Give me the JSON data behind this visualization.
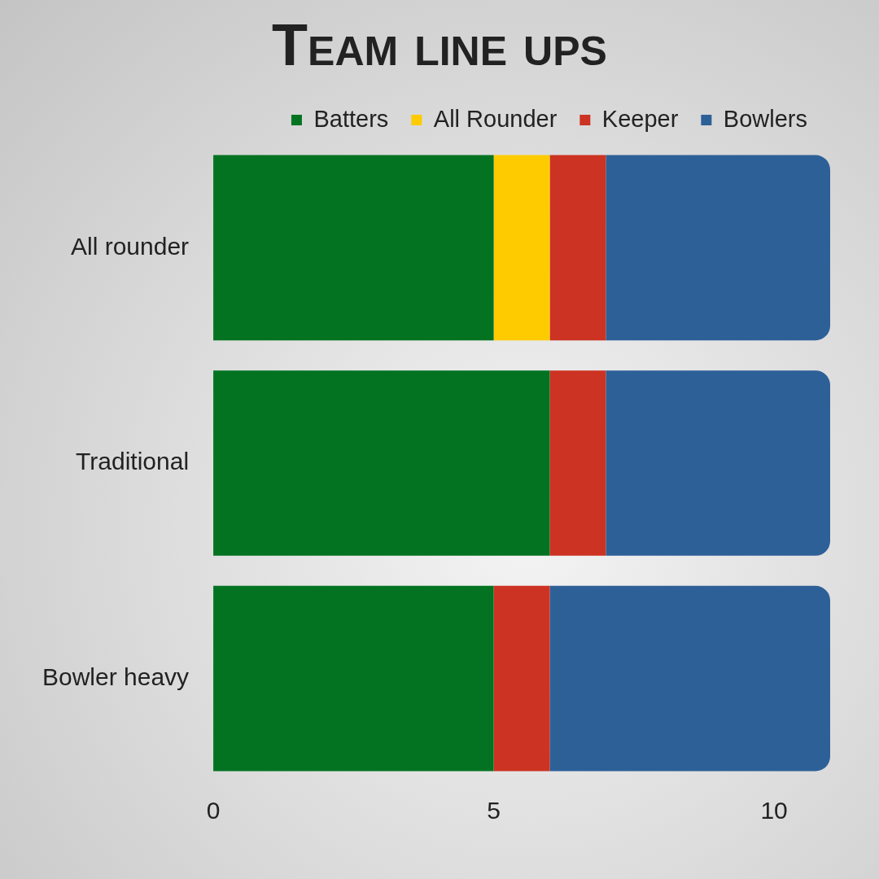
{
  "chart_data": {
    "type": "bar",
    "orientation": "horizontal",
    "stacked": true,
    "title": "Team line ups",
    "categories": [
      "All rounder",
      "Traditional",
      "Bowler heavy"
    ],
    "series": [
      {
        "name": "Batters",
        "color": "#037321",
        "values": [
          5,
          6,
          5
        ]
      },
      {
        "name": "All Rounder",
        "color": "#fecb00",
        "values": [
          1,
          0,
          0
        ]
      },
      {
        "name": "Keeper",
        "color": "#cc3322",
        "values": [
          1,
          1,
          1
        ]
      },
      {
        "name": "Bowlers",
        "color": "#2e6098",
        "values": [
          4,
          4,
          5
        ]
      }
    ],
    "xlim": [
      0,
      11
    ],
    "xticks": [
      0,
      5,
      10
    ],
    "grid": false,
    "legend": "top right"
  }
}
